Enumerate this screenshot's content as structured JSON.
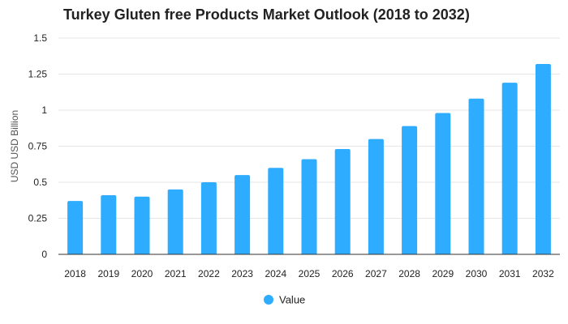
{
  "chart_data": {
    "type": "bar",
    "title": "Turkey Gluten free Products Market Outlook (2018 to 2032)",
    "xlabel": "",
    "ylabel": "USD USD Billion",
    "categories": [
      "2018",
      "2019",
      "2020",
      "2021",
      "2022",
      "2023",
      "2024",
      "2025",
      "2026",
      "2027",
      "2028",
      "2029",
      "2030",
      "2031",
      "2032"
    ],
    "series": [
      {
        "name": "Value",
        "values": [
          0.37,
          0.41,
          0.4,
          0.45,
          0.5,
          0.55,
          0.6,
          0.66,
          0.73,
          0.8,
          0.89,
          0.98,
          1.08,
          1.19,
          1.32
        ]
      }
    ],
    "ylim": [
      0,
      1.5
    ],
    "yticks": [
      "0",
      "0.25",
      "0.5",
      "0.75",
      "1",
      "1.25",
      "1.5"
    ],
    "grid": true,
    "legend_position": "bottom-center",
    "colors": {
      "bar": "#2eacff",
      "grid": "#e6e6e6",
      "axis": "#333333",
      "text": "#222222"
    }
  }
}
